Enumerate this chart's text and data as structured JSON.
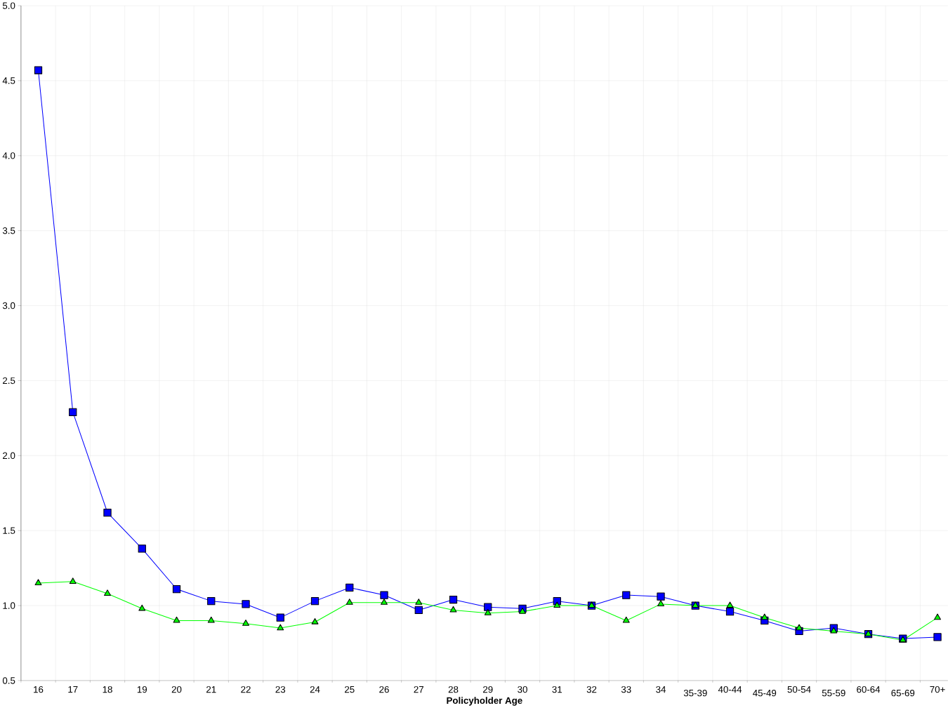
{
  "chart_data": {
    "type": "line",
    "xlabel": "Policyholder Age",
    "categories": [
      "16",
      "17",
      "18",
      "19",
      "20",
      "21",
      "22",
      "23",
      "24",
      "25",
      "26",
      "27",
      "28",
      "29",
      "30",
      "31",
      "32",
      "33",
      "34",
      "35-39",
      "40-44",
      "45-49",
      "50-54",
      "55-59",
      "60-64",
      "65-69",
      "70+"
    ],
    "series": [
      {
        "color": "#0000ff",
        "marker": "square",
        "values": [
          4.57,
          2.29,
          1.62,
          1.38,
          1.11,
          1.03,
          1.01,
          0.92,
          1.03,
          1.12,
          1.07,
          0.97,
          1.04,
          0.99,
          0.98,
          1.03,
          1.0,
          1.07,
          1.06,
          1.0,
          0.96,
          0.9,
          0.83,
          0.85,
          0.81,
          0.78,
          0.79
        ]
      },
      {
        "color": "#00ff00",
        "marker": "triangle",
        "values": [
          1.15,
          1.16,
          1.08,
          0.98,
          0.9,
          0.9,
          0.88,
          0.85,
          0.89,
          1.02,
          1.02,
          1.02,
          0.97,
          0.95,
          0.96,
          1.0,
          1.0,
          0.9,
          1.01,
          1.0,
          1.0,
          0.92,
          0.85,
          0.83,
          0.81,
          0.77,
          0.92
        ]
      }
    ],
    "ylim": [
      0.5,
      5.0
    ],
    "yticks": [
      {
        "value": 0.5,
        "label": "0.5"
      },
      {
        "value": 1.0,
        "label": "1.0"
      },
      {
        "value": 1.5,
        "label": "1.5"
      },
      {
        "value": 2.0,
        "label": "2.0"
      },
      {
        "value": 2.5,
        "label": "2.5"
      },
      {
        "value": 3.0,
        "label": "3.0"
      },
      {
        "value": 3.5,
        "label": "3.5"
      },
      {
        "value": 4.0,
        "label": "4.0"
      },
      {
        "value": 4.5,
        "label": "4.5"
      },
      {
        "value": 5.0,
        "label": "5.0"
      }
    ],
    "grid": true,
    "line_style": "solid"
  }
}
